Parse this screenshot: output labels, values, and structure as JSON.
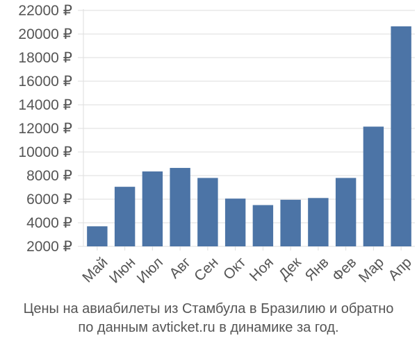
{
  "chart_data": {
    "type": "bar",
    "categories": [
      "Май",
      "Июн",
      "Июл",
      "Авг",
      "Сен",
      "Окт",
      "Ноя",
      "Дек",
      "Янв",
      "Фев",
      "Мар",
      "Апр"
    ],
    "values": [
      3700,
      7050,
      8350,
      8650,
      7800,
      6050,
      5500,
      5950,
      6100,
      7800,
      12150,
      20650
    ],
    "y_ticks": [
      "2000 ₽",
      "4000 ₽",
      "6000 ₽",
      "8000 ₽",
      "10000 ₽",
      "12000 ₽",
      "14000 ₽",
      "16000 ₽",
      "18000 ₽",
      "20000 ₽",
      "22000 ₽"
    ],
    "ylim": [
      2000,
      22000
    ],
    "bar_color": "#4c74a6",
    "grid": true,
    "legend": "none"
  },
  "caption": {
    "line1": "Цены на авиабилеты из Стамбула в Бразилию и обратно",
    "line2": "по данным avticket.ru в динамике за год."
  }
}
